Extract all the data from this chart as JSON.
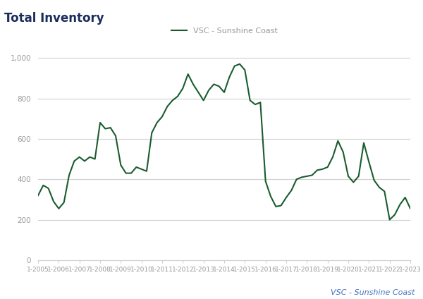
{
  "title": "Total Inventory",
  "legend_label": "VSC - Sunshine Coast",
  "watermark": "VSC - Sunshine Coast",
  "line_color": "#1a5c2e",
  "background_color": "#ffffff",
  "grid_color": "#d0d0d0",
  "title_color": "#1a2e5c",
  "axis_label_color": "#999999",
  "watermark_color": "#4472c4",
  "ylim": [
    0,
    1050
  ],
  "yticks": [
    0,
    200,
    400,
    600,
    800,
    1000
  ],
  "ytick_labels": [
    "0",
    "200",
    "400",
    "600",
    "800",
    "1,000"
  ],
  "values": [
    320,
    370,
    355,
    290,
    255,
    285,
    420,
    490,
    510,
    490,
    510,
    500,
    680,
    650,
    655,
    615,
    470,
    430,
    430,
    460,
    450,
    440,
    630,
    680,
    710,
    760,
    790,
    810,
    850,
    920,
    870,
    830,
    790,
    840,
    870,
    860,
    830,
    905,
    960,
    970,
    940,
    790,
    770,
    780,
    390,
    315,
    265,
    270,
    310,
    345,
    400,
    410,
    415,
    420,
    445,
    450,
    460,
    510,
    590,
    535,
    415,
    385,
    415,
    580,
    485,
    395,
    360,
    340,
    200,
    225,
    275,
    310,
    255
  ],
  "xtick_labels": [
    "1-2005",
    "1-2006",
    "1-2007",
    "1-2008",
    "1-2009",
    "1-2010",
    "1-2011",
    "1-2012",
    "1-2013",
    "1-2014",
    "1-2015",
    "1-2016",
    "1-2017",
    "1-2018",
    "1-2019",
    "1-2020",
    "1-2021",
    "1-2022",
    "1-2023"
  ],
  "num_per_year": 4
}
